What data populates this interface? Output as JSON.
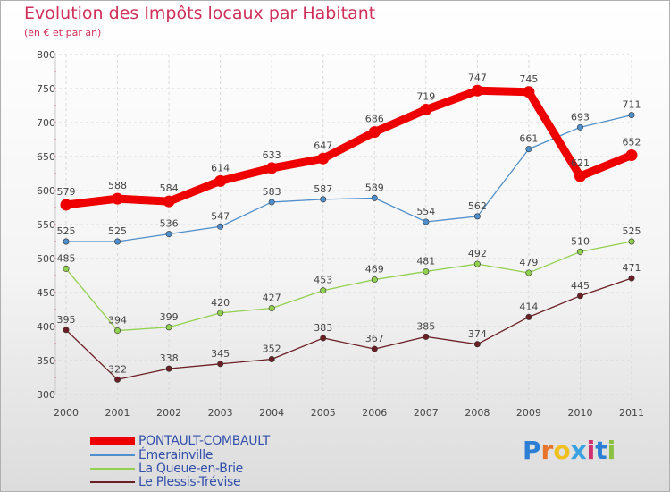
{
  "header": {
    "title": "Evolution des Impôts locaux par Habitant",
    "subtitle": "(en € et par an)"
  },
  "brand": {
    "letters": [
      "P",
      "r",
      "o",
      "x",
      "i",
      "t",
      "i"
    ],
    "colors": [
      "#2c7fd4",
      "#e8742a",
      "#f0c020",
      "#3aa0e0",
      "#d03070",
      "#2c7fd4",
      "#8ac040"
    ]
  },
  "chart_data": {
    "type": "line",
    "title": "Evolution des Impôts locaux par Habitant",
    "subtitle": "(en € et par an)",
    "xlabel": "",
    "ylabel": "",
    "x": [
      "2000",
      "2001",
      "2002",
      "2003",
      "2004",
      "2005",
      "2006",
      "2007",
      "2008",
      "2009",
      "2010",
      "2011"
    ],
    "ylim": [
      300,
      800
    ],
    "yticks": [
      "300",
      "350",
      "400",
      "450",
      "500",
      "550",
      "600",
      "650",
      "700",
      "750",
      "800"
    ],
    "grid": true,
    "legend_position": "bottom-left",
    "series": [
      {
        "name": "PONTAULT-COMBAULT",
        "color": "#ee0000",
        "emphasis": true,
        "values": [
          579,
          588,
          584,
          614,
          633,
          647,
          686,
          719,
          747,
          745,
          621,
          652
        ],
        "labels": [
          "579",
          "588",
          "584",
          "614",
          "633",
          "647",
          "686",
          "719",
          "747",
          "745",
          "621",
          "652"
        ]
      },
      {
        "name": "Émerainville",
        "color": "#4f8fcb",
        "emphasis": false,
        "values": [
          525,
          525,
          536,
          547,
          583,
          587,
          589,
          554,
          562,
          661,
          693,
          711
        ],
        "labels": [
          "525",
          "525",
          "536",
          "547",
          "583",
          "587",
          "589",
          "554",
          "562",
          "661",
          "693",
          "711"
        ]
      },
      {
        "name": "La Queue-en-Brie",
        "color": "#92d050",
        "emphasis": false,
        "values": [
          485,
          394,
          399,
          420,
          427,
          453,
          469,
          481,
          492,
          479,
          510,
          525
        ],
        "labels": [
          "485",
          "394",
          "399",
          "420",
          "427",
          "453",
          "469",
          "481",
          "492",
          "479",
          "510",
          "525"
        ]
      },
      {
        "name": "Le Plessis-Trévise",
        "color": "#6b1f24",
        "emphasis": false,
        "values": [
          395,
          322,
          338,
          345,
          352,
          383,
          367,
          385,
          374,
          414,
          445,
          471
        ],
        "labels": [
          "395",
          "322",
          "338",
          "345",
          "352",
          "383",
          "367",
          "385",
          "374",
          "414",
          "445",
          "471"
        ]
      }
    ]
  }
}
